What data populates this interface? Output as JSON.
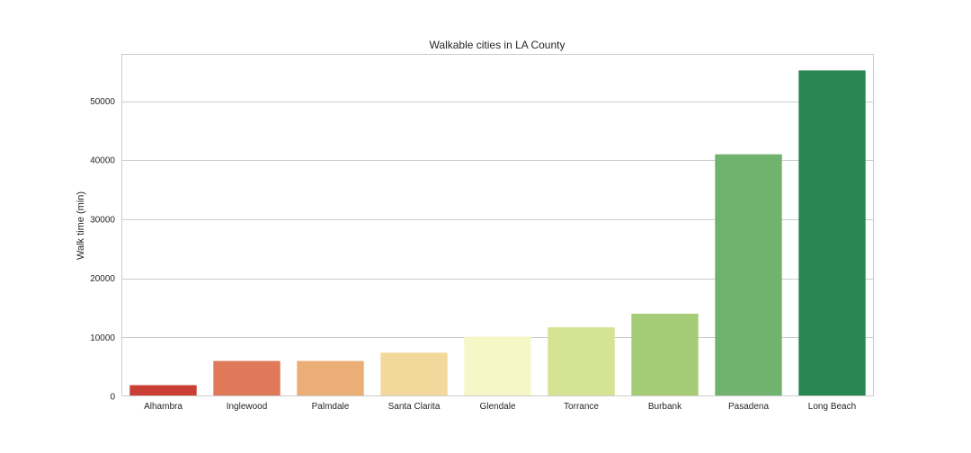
{
  "chart_data": {
    "type": "bar",
    "title": "Walkable cities in LA County",
    "xlabel": "",
    "ylabel": "Walk time (min)",
    "categories": [
      "Alhambra",
      "Inglewood",
      "Palmdale",
      "Santa Clarita",
      "Glendale",
      "Torrance",
      "Burbank",
      "Pasadena",
      "Long Beach"
    ],
    "values": [
      1900,
      6000,
      6000,
      7400,
      10100,
      11700,
      14000,
      41000,
      55200
    ],
    "colors": [
      "#cb3e35",
      "#e0785a",
      "#ebae76",
      "#f2d89a",
      "#f6f7c6",
      "#d4e494",
      "#a4cc76",
      "#70b36e",
      "#288752"
    ],
    "ylim": [
      0,
      58000
    ],
    "yticks": [
      0,
      10000,
      20000,
      30000,
      40000,
      50000
    ],
    "grid": true,
    "legend": "none"
  }
}
